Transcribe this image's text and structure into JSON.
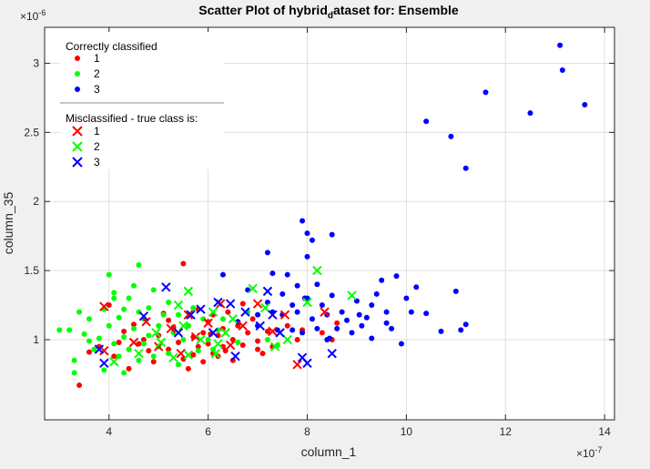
{
  "chart_data": {
    "type": "scatter",
    "title": "Scatter Plot of hybrid_dataset for: Ensemble",
    "title_parts": [
      "Scatter Plot of hybrid",
      "d",
      "ataset for: Ensemble"
    ],
    "xlabel": "column_1",
    "ylabel": "column_35",
    "x_exponent": "×10⁻⁷",
    "y_exponent": "×10⁻⁶",
    "x_unit_label": "×10",
    "x_unit_power": "-7",
    "y_unit_label": "×10",
    "y_unit_power": "-6",
    "xlim": [
      2.7,
      14.2
    ],
    "ylim": [
      0.42,
      3.26
    ],
    "xticks": [
      4,
      6,
      8,
      10,
      12,
      14
    ],
    "yticks": [
      1,
      1.5,
      2,
      2.5,
      3
    ],
    "xtick_labels": [
      "4",
      "6",
      "8",
      "10",
      "12",
      "14"
    ],
    "ytick_labels": [
      "1",
      "1.5",
      "2",
      "2.5",
      "3"
    ],
    "grid": true,
    "legend_location": "top-left",
    "legend": {
      "group1_title": "Correctly classified",
      "group2_title": "Misclassified - true class is:",
      "labels": [
        "1",
        "2",
        "3"
      ]
    },
    "colors": {
      "1": "#ff0000",
      "2": "#00ff00",
      "3": "#0000ff"
    },
    "series": [
      {
        "name": "1",
        "marker": "dot",
        "points": [
          [
            3.4,
            0.67
          ],
          [
            3.6,
            0.91
          ],
          [
            3.8,
            0.95
          ],
          [
            4.0,
            1.25
          ],
          [
            4.1,
            0.88
          ],
          [
            4.3,
            1.06
          ],
          [
            4.4,
            0.79
          ],
          [
            4.5,
            1.11
          ],
          [
            4.7,
            1.0
          ],
          [
            4.8,
            0.92
          ],
          [
            4.9,
            0.84
          ],
          [
            5.0,
            1.03
          ],
          [
            5.1,
            1.19
          ],
          [
            5.2,
            0.93
          ],
          [
            5.3,
            1.09
          ],
          [
            5.4,
            0.98
          ],
          [
            5.5,
            0.86
          ],
          [
            5.5,
            1.55
          ],
          [
            5.6,
            1.1
          ],
          [
            5.7,
            1.02
          ],
          [
            5.8,
            0.95
          ],
          [
            5.8,
            1.22
          ],
          [
            5.9,
            1.05
          ],
          [
            5.9,
            0.84
          ],
          [
            6.0,
            1.13
          ],
          [
            6.0,
            0.97
          ],
          [
            6.1,
            1.18
          ],
          [
            6.1,
            0.9
          ],
          [
            6.2,
            1.03
          ],
          [
            6.2,
            0.88
          ],
          [
            6.3,
            1.08
          ],
          [
            6.3,
            0.95
          ],
          [
            6.4,
            1.2
          ],
          [
            6.5,
            1.0
          ],
          [
            6.5,
            0.85
          ],
          [
            6.6,
            1.1
          ],
          [
            6.7,
            0.96
          ],
          [
            6.8,
            1.05
          ],
          [
            6.9,
            1.15
          ],
          [
            7.0,
            0.99
          ],
          [
            7.1,
            0.9
          ],
          [
            7.2,
            1.06
          ],
          [
            7.3,
            0.95
          ],
          [
            7.6,
            1.1
          ],
          [
            7.8,
            1.0
          ],
          [
            7.9,
            1.07
          ],
          [
            8.3,
            1.05
          ],
          [
            8.5,
            1.0
          ],
          [
            8.6,
            1.12
          ],
          [
            4.2,
            0.98
          ],
          [
            4.6,
            0.97
          ],
          [
            5.2,
            1.14
          ],
          [
            5.6,
            0.79
          ],
          [
            5.7,
            0.89
          ],
          [
            6.05,
            1.04
          ],
          [
            6.35,
            0.92
          ],
          [
            6.7,
            1.26
          ],
          [
            7.0,
            0.93
          ]
        ]
      },
      {
        "name": "2",
        "marker": "dot",
        "points": [
          [
            3.0,
            1.07
          ],
          [
            3.2,
            1.07
          ],
          [
            3.3,
            0.85
          ],
          [
            3.3,
            0.76
          ],
          [
            3.4,
            1.2
          ],
          [
            3.5,
            1.04
          ],
          [
            3.6,
            1.15
          ],
          [
            3.7,
            0.93
          ],
          [
            3.8,
            1.01
          ],
          [
            3.9,
            1.22
          ],
          [
            3.9,
            0.78
          ],
          [
            4.0,
            1.1
          ],
          [
            4.0,
            1.47
          ],
          [
            4.1,
            1.3
          ],
          [
            4.1,
            0.97
          ],
          [
            4.2,
            1.16
          ],
          [
            4.2,
            0.88
          ],
          [
            4.3,
            1.02
          ],
          [
            4.3,
            1.22
          ],
          [
            4.4,
            0.93
          ],
          [
            4.4,
            1.3
          ],
          [
            4.5,
            1.08
          ],
          [
            4.5,
            1.39
          ],
          [
            4.6,
            1.2
          ],
          [
            4.6,
            0.85
          ],
          [
            4.6,
            1.54
          ],
          [
            4.7,
            1.15
          ],
          [
            4.7,
            0.97
          ],
          [
            4.8,
            1.23
          ],
          [
            4.8,
            1.03
          ],
          [
            4.9,
            0.88
          ],
          [
            4.9,
            1.36
          ],
          [
            5.0,
            1.1
          ],
          [
            5.0,
            0.95
          ],
          [
            5.1,
            1.18
          ],
          [
            5.2,
            1.27
          ],
          [
            5.2,
            0.9
          ],
          [
            5.3,
            1.05
          ],
          [
            5.4,
            1.18
          ],
          [
            5.5,
            1.0
          ],
          [
            5.6,
            1.1
          ],
          [
            5.7,
            1.23
          ],
          [
            5.8,
            0.92
          ],
          [
            5.9,
            1.15
          ],
          [
            6.0,
            1.0
          ],
          [
            6.1,
            0.93
          ],
          [
            6.2,
            1.07
          ],
          [
            6.3,
            1.15
          ],
          [
            6.6,
            0.98
          ],
          [
            6.8,
            1.2
          ],
          [
            7.2,
            1.0
          ],
          [
            7.4,
            0.96
          ],
          [
            4.3,
            0.76
          ],
          [
            5.4,
            0.82
          ],
          [
            3.6,
            0.99
          ],
          [
            4.1,
            1.34
          ]
        ]
      },
      {
        "name": "3",
        "marker": "dot",
        "points": [
          [
            6.3,
            1.47
          ],
          [
            6.6,
            1.13
          ],
          [
            6.8,
            1.36
          ],
          [
            7.0,
            1.18
          ],
          [
            7.0,
            1.1
          ],
          [
            7.2,
            1.63
          ],
          [
            7.2,
            1.27
          ],
          [
            7.3,
            1.2
          ],
          [
            7.3,
            1.48
          ],
          [
            7.4,
            1.07
          ],
          [
            7.5,
            1.33
          ],
          [
            7.5,
            1.18
          ],
          [
            7.6,
            1.47
          ],
          [
            7.7,
            1.25
          ],
          [
            7.7,
            1.07
          ],
          [
            7.8,
            1.39
          ],
          [
            7.8,
            1.2
          ],
          [
            7.9,
            1.86
          ],
          [
            7.9,
            1.05
          ],
          [
            8.0,
            1.3
          ],
          [
            8.0,
            1.6
          ],
          [
            8.1,
            1.15
          ],
          [
            8.0,
            1.77
          ],
          [
            8.1,
            1.72
          ],
          [
            8.2,
            1.4
          ],
          [
            8.2,
            1.08
          ],
          [
            8.3,
            1.25
          ],
          [
            8.4,
            1.0
          ],
          [
            8.4,
            1.18
          ],
          [
            8.5,
            1.32
          ],
          [
            8.5,
            1.76
          ],
          [
            8.6,
            1.08
          ],
          [
            8.7,
            1.2
          ],
          [
            8.8,
            1.14
          ],
          [
            8.9,
            1.05
          ],
          [
            9.0,
            1.28
          ],
          [
            9.1,
            1.1
          ],
          [
            9.2,
            1.16
          ],
          [
            9.3,
            1.25
          ],
          [
            9.3,
            1.01
          ],
          [
            9.4,
            1.33
          ],
          [
            9.5,
            1.43
          ],
          [
            9.6,
            1.2
          ],
          [
            9.7,
            1.08
          ],
          [
            9.8,
            1.46
          ],
          [
            9.9,
            0.97
          ],
          [
            10.0,
            1.3
          ],
          [
            10.1,
            1.2
          ],
          [
            10.2,
            1.38
          ],
          [
            10.4,
            1.19
          ],
          [
            10.4,
            2.58
          ],
          [
            10.7,
            1.06
          ],
          [
            10.9,
            2.47
          ],
          [
            11.0,
            1.35
          ],
          [
            11.1,
            1.07
          ],
          [
            11.2,
            2.24
          ],
          [
            11.2,
            1.11
          ],
          [
            11.6,
            2.79
          ],
          [
            12.5,
            2.64
          ],
          [
            13.1,
            3.13
          ],
          [
            13.15,
            2.95
          ],
          [
            13.6,
            2.7
          ],
          [
            9.6,
            1.12
          ],
          [
            8.45,
            1.01
          ],
          [
            9.05,
            1.18
          ],
          [
            7.95,
            1.3
          ]
        ]
      },
      {
        "name": "1",
        "marker": "x",
        "points": [
          [
            3.9,
            1.24
          ],
          [
            3.9,
            0.92
          ],
          [
            4.5,
            0.98
          ],
          [
            4.75,
            1.13
          ],
          [
            5.0,
            0.95
          ],
          [
            5.25,
            1.08
          ],
          [
            5.45,
            0.9
          ],
          [
            5.6,
            1.18
          ],
          [
            5.75,
            1.02
          ],
          [
            6.0,
            1.12
          ],
          [
            6.25,
            1.26
          ],
          [
            6.45,
            0.96
          ],
          [
            6.7,
            1.1
          ],
          [
            7.0,
            1.26
          ],
          [
            7.3,
            1.06
          ],
          [
            7.55,
            1.18
          ],
          [
            7.8,
            0.82
          ],
          [
            8.35,
            1.2
          ]
        ]
      },
      {
        "name": "2",
        "marker": "x",
        "points": [
          [
            4.1,
            0.84
          ],
          [
            4.6,
            0.9
          ],
          [
            4.95,
            1.05
          ],
          [
            5.05,
            0.98
          ],
          [
            5.3,
            0.87
          ],
          [
            5.5,
            1.1
          ],
          [
            5.6,
            1.35
          ],
          [
            5.6,
            0.89
          ],
          [
            5.85,
            1.0
          ],
          [
            6.1,
            1.2
          ],
          [
            6.15,
            0.9
          ],
          [
            6.2,
            0.97
          ],
          [
            6.35,
            1.05
          ],
          [
            6.9,
            1.37
          ],
          [
            7.15,
            1.23
          ],
          [
            7.35,
            0.95
          ],
          [
            7.6,
            1.0
          ],
          [
            8.0,
            1.27
          ],
          [
            8.2,
            1.5
          ],
          [
            8.9,
            1.32
          ],
          [
            5.4,
            1.25
          ],
          [
            6.5,
            1.15
          ]
        ]
      },
      {
        "name": "3",
        "marker": "x",
        "points": [
          [
            3.8,
            0.93
          ],
          [
            3.9,
            0.83
          ],
          [
            4.7,
            1.17
          ],
          [
            5.15,
            1.38
          ],
          [
            5.4,
            1.05
          ],
          [
            5.65,
            1.18
          ],
          [
            5.85,
            1.22
          ],
          [
            6.1,
            1.05
          ],
          [
            6.2,
            1.27
          ],
          [
            6.45,
            1.26
          ],
          [
            6.55,
            0.88
          ],
          [
            7.05,
            1.1
          ],
          [
            7.2,
            1.35
          ],
          [
            7.3,
            1.18
          ],
          [
            7.45,
            1.05
          ],
          [
            7.9,
            0.87
          ],
          [
            8.0,
            0.83
          ],
          [
            8.5,
            0.9
          ],
          [
            6.75,
            1.2
          ]
        ]
      }
    ]
  }
}
